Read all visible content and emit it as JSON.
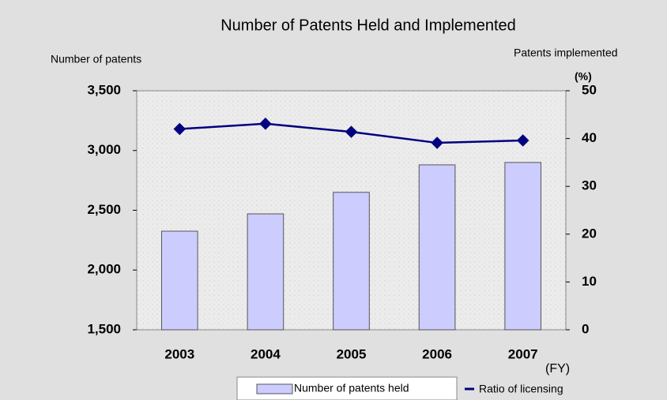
{
  "chart_data": {
    "type": "bar_line",
    "title": "Number of Patents Held and Implemented",
    "y_label": "Number of patents",
    "y2_label": "Patents implemented",
    "y2_unit": "(%)",
    "x_unit": "(FY)",
    "categories": [
      "2003",
      "2004",
      "2005",
      "2006",
      "2007"
    ],
    "series": [
      {
        "name": "Number of patents held",
        "type": "bar",
        "color": "#ccccff",
        "values": [
          2325,
          2470,
          2650,
          2880,
          2900
        ]
      },
      {
        "name": "Ratio of licensing",
        "type": "line",
        "axis": "y2",
        "color": "#000080",
        "values": [
          42,
          43.1,
          41.4,
          39.1,
          39.6
        ]
      }
    ],
    "ylim": [
      1500,
      3500
    ],
    "yticks": [
      {
        "value": 1500,
        "label": "1,500"
      },
      {
        "value": 2000,
        "label": "2,000"
      },
      {
        "value": 2500,
        "label": "2,500"
      },
      {
        "value": 3000,
        "label": "3,000"
      },
      {
        "value": 3500,
        "label": "3,500"
      }
    ],
    "y2lim": [
      0,
      50
    ],
    "y2ticks": [
      0,
      10,
      20,
      30,
      40,
      50
    ]
  }
}
